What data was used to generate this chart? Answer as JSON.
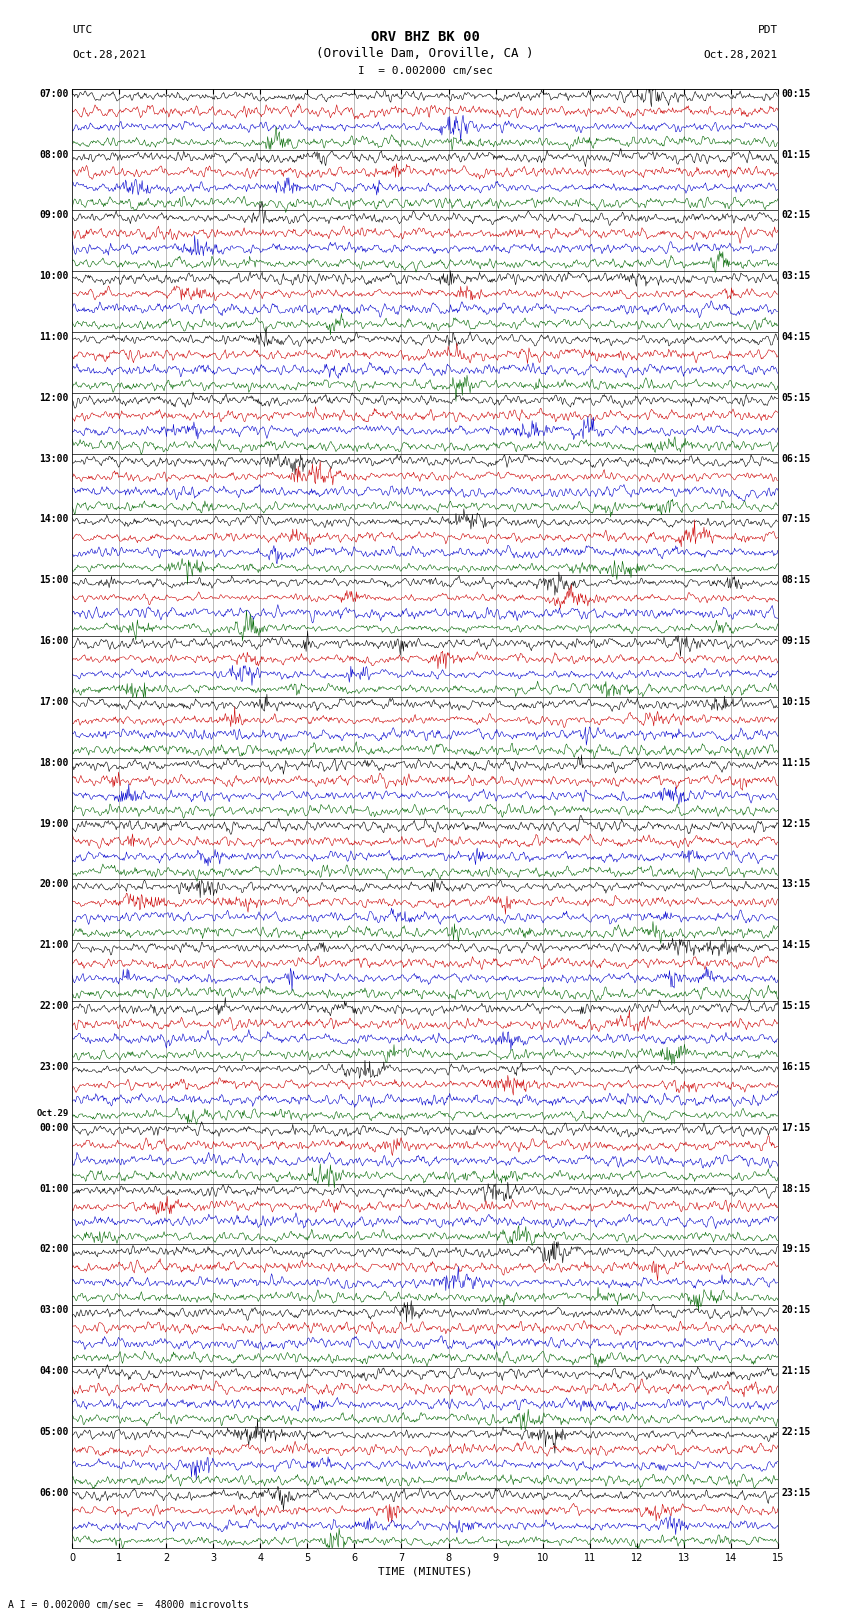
{
  "title_line1": "ORV BHZ BK 00",
  "title_line2": "(Oroville Dam, Oroville, CA )",
  "scale_label": "I  = 0.002000 cm/sec",
  "footer_label": "A I = 0.002000 cm/sec =  48000 microvolts",
  "left_header": "UTC",
  "right_header": "PDT",
  "left_date": "Oct.28,2021",
  "right_date": "Oct.28,2021",
  "xlabel": "TIME (MINUTES)",
  "xmin": 0,
  "xmax": 15,
  "xticks": [
    0,
    1,
    2,
    3,
    4,
    5,
    6,
    7,
    8,
    9,
    10,
    11,
    12,
    13,
    14,
    15
  ],
  "trace_colors_hex": [
    "#000000",
    "#cc0000",
    "#0000cc",
    "#006600"
  ],
  "left_times_hourly": [
    "07:00",
    "08:00",
    "09:00",
    "10:00",
    "11:00",
    "12:00",
    "13:00",
    "14:00",
    "15:00",
    "16:00",
    "17:00",
    "18:00",
    "19:00",
    "20:00",
    "21:00",
    "22:00",
    "23:00",
    "00:00",
    "01:00",
    "02:00",
    "03:00",
    "04:00",
    "05:00",
    "06:00"
  ],
  "left_date2": "Oct.29",
  "right_times_hourly": [
    "00:15",
    "01:15",
    "02:15",
    "03:15",
    "04:15",
    "05:15",
    "06:15",
    "07:15",
    "08:15",
    "09:15",
    "10:15",
    "11:15",
    "12:15",
    "13:15",
    "14:15",
    "15:15",
    "16:15",
    "17:15",
    "18:15",
    "19:15",
    "20:15",
    "21:15",
    "22:15",
    "23:15"
  ],
  "num_hours": 24,
  "traces_per_hour": 4,
  "bg_color": "#ffffff",
  "noise_seed": 12345,
  "trace_amplitude": 0.38,
  "trace_lw": 0.4,
  "grid_color": "#888888",
  "grid_lw": 0.4
}
